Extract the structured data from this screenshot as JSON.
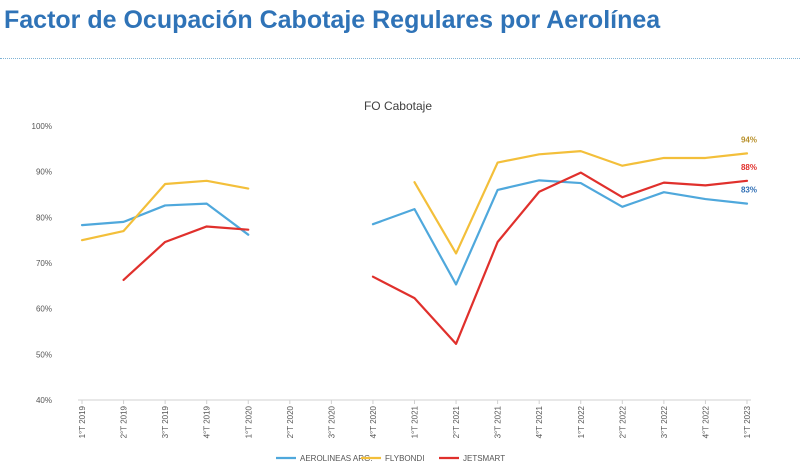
{
  "page": {
    "title": "Factor de Ocupación Cabotaje Regulares por Aerolínea"
  },
  "chart_data": {
    "type": "line",
    "title": "FO Cabotaje",
    "xlabel": "",
    "ylabel": "",
    "ylim": [
      40,
      100
    ],
    "yticks": [
      "100%",
      "90%",
      "80%",
      "70%",
      "60%",
      "50%",
      "40%"
    ],
    "ytick_values": [
      100,
      90,
      80,
      70,
      60,
      50,
      40
    ],
    "grid": false,
    "legend_position": "bottom",
    "categories": [
      "1°T 2019",
      "2°T 2019",
      "3°T 2019",
      "4°T 2019",
      "1°T 2020",
      "2°T 2020",
      "3°T 2020",
      "4°T 2020",
      "1°T 2021",
      "2°T 2021",
      "3°T 2021",
      "4°T 2021",
      "1°T 2022",
      "2°T 2022",
      "3°T 2022",
      "4°T 2022",
      "1°T 2023"
    ],
    "series": [
      {
        "name": "AEROLINEAS ARG.",
        "color": "#4fa8dc",
        "values": [
          78.3,
          79.0,
          82.6,
          83.0,
          76.2,
          null,
          null,
          78.5,
          81.8,
          65.3,
          86.0,
          88.1,
          87.5,
          82.3,
          85.5,
          84.0,
          83.0
        ],
        "end_label": "83%"
      },
      {
        "name": "FLYBONDI",
        "color": "#f3bf3a",
        "values": [
          75.0,
          77.0,
          87.3,
          88.0,
          86.3,
          null,
          null,
          null,
          87.7,
          72.1,
          92.0,
          93.8,
          94.5,
          91.3,
          93.0,
          93.0,
          94.0
        ],
        "end_label": "94%"
      },
      {
        "name": "JETSMART",
        "color": "#e0302c",
        "values": [
          null,
          66.3,
          74.6,
          78.0,
          77.3,
          null,
          null,
          67.0,
          62.3,
          52.3,
          74.6,
          85.6,
          89.8,
          84.4,
          87.6,
          87.0,
          88.0
        ],
        "end_label": "88%"
      }
    ],
    "end_label_colors": {
      "AEROLINEAS ARG.": "#2f6eb5",
      "FLYBONDI": "#b8902a",
      "JETSMART": "#e0302c"
    }
  }
}
